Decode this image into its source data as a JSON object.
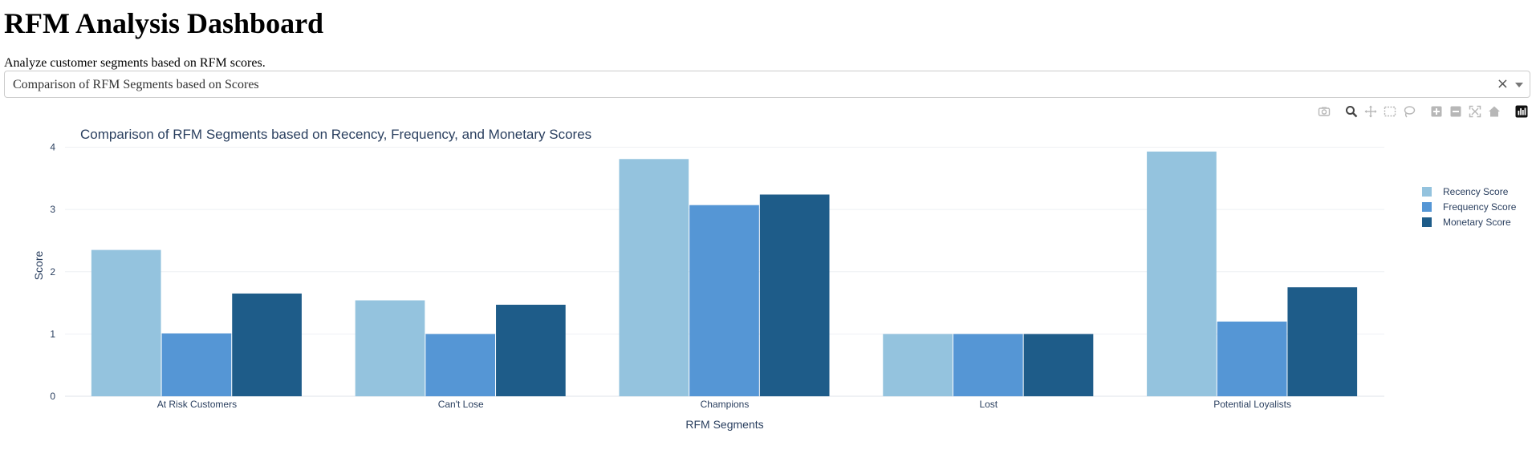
{
  "page": {
    "title": "RFM Analysis Dashboard",
    "description": "Analyze customer segments based on RFM scores."
  },
  "dropdown": {
    "value": "Comparison of RFM Segments based on Scores",
    "clear_icon": "×"
  },
  "modebar": {
    "icons": [
      "camera-icon",
      "zoom-icon",
      "pan-icon",
      "box-select-icon",
      "lasso-icon",
      "zoom-in-icon",
      "zoom-out-icon",
      "autoscale-icon",
      "reset-axes-icon",
      "plotly-logo-icon"
    ]
  },
  "chart_data": {
    "type": "bar",
    "title": "Comparison of RFM Segments based on Recency, Frequency, and Monetary Scores",
    "xlabel": "RFM Segments",
    "ylabel": "Score",
    "ylim": [
      0,
      4.2
    ],
    "yticks": [
      0,
      1,
      2,
      3,
      4
    ],
    "grid": true,
    "legend_position": "top-right",
    "categories": [
      "At Risk Customers",
      "Can't Lose",
      "Champions",
      "Lost",
      "Potential Loyalists"
    ],
    "series": [
      {
        "name": "Recency Score",
        "color": "#94c3de",
        "values": [
          2.35,
          1.54,
          3.81,
          1.0,
          3.93
        ]
      },
      {
        "name": "Frequency Score",
        "color": "#5596d5",
        "values": [
          1.01,
          1.0,
          3.07,
          1.0,
          1.2
        ]
      },
      {
        "name": "Monetary Score",
        "color": "#1e5c89",
        "values": [
          1.65,
          1.47,
          3.24,
          1.0,
          1.75
        ]
      }
    ]
  }
}
